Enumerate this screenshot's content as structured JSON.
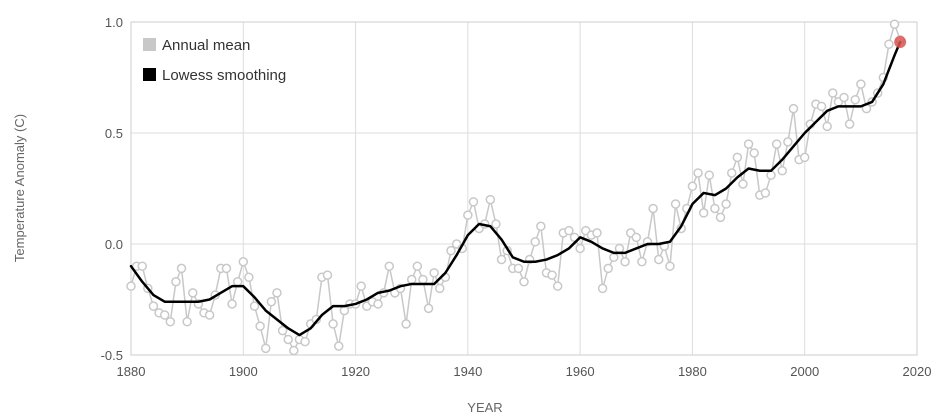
{
  "chart_data": {
    "type": "line",
    "xlabel": "YEAR",
    "ylabel": "Temperature Anomaly (C)",
    "xlim": [
      1880,
      2020
    ],
    "ylim": [
      -0.5,
      1.0
    ],
    "x_ticks": [
      1880,
      1900,
      1920,
      1940,
      1960,
      1980,
      2000,
      2020
    ],
    "y_ticks": [
      -0.5,
      0.0,
      0.5,
      1.0
    ],
    "x_tick_labels": [
      "1880",
      "1900",
      "1920",
      "1940",
      "1960",
      "1980",
      "2000",
      "2020"
    ],
    "y_tick_labels": [
      "-0.5",
      "0.0",
      "0.5",
      "1.0"
    ],
    "grid": true,
    "legend_position": "top-left",
    "series": [
      {
        "name": "Annual mean",
        "color": "#c8c8c8",
        "x": [
          1880,
          1881,
          1882,
          1883,
          1884,
          1885,
          1886,
          1887,
          1888,
          1889,
          1890,
          1891,
          1892,
          1893,
          1894,
          1895,
          1896,
          1897,
          1898,
          1899,
          1900,
          1901,
          1902,
          1903,
          1904,
          1905,
          1906,
          1907,
          1908,
          1909,
          1910,
          1911,
          1912,
          1913,
          1914,
          1915,
          1916,
          1917,
          1918,
          1919,
          1920,
          1921,
          1922,
          1923,
          1924,
          1925,
          1926,
          1927,
          1928,
          1929,
          1930,
          1931,
          1932,
          1933,
          1934,
          1935,
          1936,
          1937,
          1938,
          1939,
          1940,
          1941,
          1942,
          1943,
          1944,
          1945,
          1946,
          1947,
          1948,
          1949,
          1950,
          1951,
          1952,
          1953,
          1954,
          1955,
          1956,
          1957,
          1958,
          1959,
          1960,
          1961,
          1962,
          1963,
          1964,
          1965,
          1966,
          1967,
          1968,
          1969,
          1970,
          1971,
          1972,
          1973,
          1974,
          1975,
          1976,
          1977,
          1978,
          1979,
          1980,
          1981,
          1982,
          1983,
          1984,
          1985,
          1986,
          1987,
          1988,
          1989,
          1990,
          1991,
          1992,
          1993,
          1994,
          1995,
          1996,
          1997,
          1998,
          1999,
          2000,
          2001,
          2002,
          2003,
          2004,
          2005,
          2006,
          2007,
          2008,
          2009,
          2010,
          2011,
          2012,
          2013,
          2014,
          2015,
          2016,
          2017
        ],
        "values": [
          -0.19,
          -0.1,
          -0.1,
          -0.2,
          -0.28,
          -0.31,
          -0.32,
          -0.35,
          -0.17,
          -0.11,
          -0.35,
          -0.22,
          -0.27,
          -0.31,
          -0.32,
          -0.23,
          -0.11,
          -0.11,
          -0.27,
          -0.17,
          -0.08,
          -0.15,
          -0.28,
          -0.37,
          -0.47,
          -0.26,
          -0.22,
          -0.39,
          -0.43,
          -0.48,
          -0.43,
          -0.44,
          -0.36,
          -0.34,
          -0.15,
          -0.14,
          -0.36,
          -0.46,
          -0.3,
          -0.27,
          -0.27,
          -0.19,
          -0.28,
          -0.26,
          -0.27,
          -0.22,
          -0.1,
          -0.22,
          -0.2,
          -0.36,
          -0.16,
          -0.1,
          -0.16,
          -0.29,
          -0.13,
          -0.2,
          -0.15,
          -0.03,
          0.0,
          -0.02,
          0.13,
          0.19,
          0.07,
          0.09,
          0.2,
          0.09,
          -0.07,
          -0.03,
          -0.11,
          -0.11,
          -0.17,
          -0.07,
          0.01,
          0.08,
          -0.13,
          -0.14,
          -0.19,
          0.05,
          0.06,
          0.03,
          -0.02,
          0.06,
          0.04,
          0.05,
          -0.2,
          -0.11,
          -0.06,
          -0.02,
          -0.08,
          0.05,
          0.03,
          -0.08,
          0.01,
          0.16,
          -0.07,
          -0.01,
          -0.1,
          0.18,
          0.07,
          0.16,
          0.26,
          0.32,
          0.14,
          0.31,
          0.16,
          0.12,
          0.18,
          0.32,
          0.39,
          0.27,
          0.45,
          0.41,
          0.22,
          0.23,
          0.31,
          0.45,
          0.33,
          0.46,
          0.61,
          0.38,
          0.39,
          0.54,
          0.63,
          0.62,
          0.53,
          0.68,
          0.64,
          0.66,
          0.54,
          0.65,
          0.72,
          0.61,
          0.64,
          0.68,
          0.75,
          0.9,
          0.99,
          0.92
        ]
      },
      {
        "name": "Lowess smoothing",
        "color": "#000000",
        "x": [
          1880,
          1882,
          1884,
          1886,
          1888,
          1890,
          1892,
          1894,
          1896,
          1898,
          1900,
          1902,
          1904,
          1906,
          1908,
          1910,
          1912,
          1914,
          1916,
          1918,
          1920,
          1922,
          1924,
          1926,
          1928,
          1930,
          1932,
          1934,
          1936,
          1938,
          1940,
          1942,
          1944,
          1946,
          1948,
          1950,
          1952,
          1954,
          1956,
          1958,
          1960,
          1962,
          1964,
          1966,
          1968,
          1970,
          1972,
          1974,
          1976,
          1978,
          1980,
          1982,
          1984,
          1986,
          1988,
          1990,
          1992,
          1994,
          1996,
          1998,
          2000,
          2002,
          2004,
          2006,
          2008,
          2010,
          2012,
          2014,
          2016,
          2017
        ],
        "values": [
          -0.1,
          -0.17,
          -0.23,
          -0.26,
          -0.26,
          -0.26,
          -0.26,
          -0.25,
          -0.22,
          -0.19,
          -0.19,
          -0.24,
          -0.3,
          -0.34,
          -0.38,
          -0.41,
          -0.38,
          -0.32,
          -0.28,
          -0.28,
          -0.27,
          -0.25,
          -0.22,
          -0.21,
          -0.19,
          -0.18,
          -0.18,
          -0.18,
          -0.13,
          -0.05,
          0.04,
          0.09,
          0.08,
          0.02,
          -0.06,
          -0.08,
          -0.08,
          -0.07,
          -0.05,
          -0.02,
          0.03,
          0.01,
          -0.02,
          -0.04,
          -0.04,
          -0.02,
          0.0,
          0.0,
          0.01,
          0.08,
          0.18,
          0.23,
          0.22,
          0.25,
          0.3,
          0.34,
          0.33,
          0.33,
          0.38,
          0.44,
          0.5,
          0.55,
          0.6,
          0.62,
          0.62,
          0.62,
          0.64,
          0.72,
          0.85,
          0.91
        ]
      }
    ],
    "highlight_point": {
      "x": 2017,
      "y": 0.91,
      "color": "#d9534f"
    }
  }
}
